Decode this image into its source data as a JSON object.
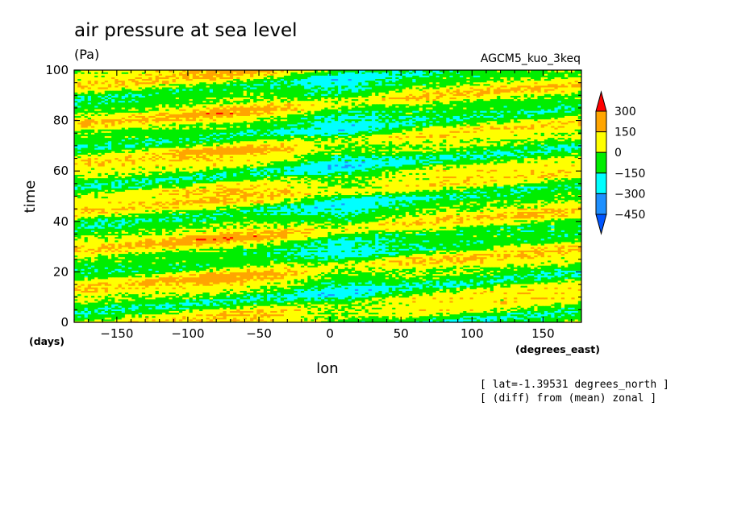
{
  "chart_data": {
    "type": "heatmap",
    "title": "air pressure at sea level",
    "units": "(Pa)",
    "model_name": "AGCM5_kuo_3keq",
    "xlabel": "lon",
    "xunits": "(degrees_east)",
    "ylabel": "time",
    "yunits": "(days)",
    "xlim": [
      -180,
      177
    ],
    "ylim": [
      0,
      100
    ],
    "xticks": [
      -150,
      -100,
      -50,
      0,
      50,
      100,
      150
    ],
    "yticks": [
      0,
      20,
      40,
      60,
      80,
      100
    ],
    "annotations": [
      "[ lat=-1.39531 degrees_north ]",
      "[ (diff) from (mean) zonal ]"
    ],
    "colorbar": {
      "levels": [
        300,
        150,
        0,
        -150,
        -300,
        -450
      ],
      "colors": [
        "#ff0000",
        "#ffa500",
        "#ffff00",
        "#00ee00",
        "#00ffff",
        "#1e90ff",
        "#0055ff"
      ],
      "labels": [
        "300",
        "150",
        "0",
        "−150",
        "−300",
        "−450"
      ]
    },
    "pattern": {
      "description_bands": "eastward-propagating pressure anomaly bands",
      "phase_speed_days_per_degree": 0.045,
      "band_period_days": 16.5
    }
  }
}
